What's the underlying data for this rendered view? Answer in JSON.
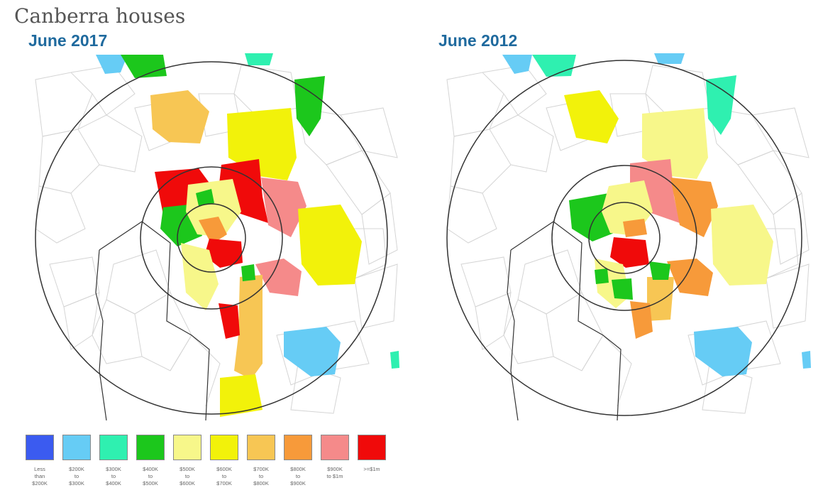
{
  "title": "Canberra houses",
  "maps": [
    {
      "subtitle": "June 2017"
    },
    {
      "subtitle": "June 2012"
    }
  ],
  "colors": {
    "lt200k": "#3b5bf0",
    "200_300k": "#66ccf5",
    "300_400k": "#2ff0b0",
    "400_500k": "#1cc71c",
    "500_600k": "#f7f78a",
    "600_700k": "#f2f20a",
    "700_800k": "#f7c654",
    "800_900k": "#f79a3a",
    "900k_1m": "#f58a8a",
    "gte1m": "#f00a0a"
  },
  "legend": [
    {
      "label": "Less\nthan\n$200K",
      "color_key": "lt200k"
    },
    {
      "label": "$200K\nto\n$300K",
      "color_key": "200_300k"
    },
    {
      "label": "$300K\nto\n$400K",
      "color_key": "300_400k"
    },
    {
      "label": "$400K\nto\n$500K",
      "color_key": "400_500k"
    },
    {
      "label": "$500K\nto\n$600K",
      "color_key": "500_600k"
    },
    {
      "label": "$600K\nto\n$700K",
      "color_key": "600_700k"
    },
    {
      "label": "$700K\nto\n$800K",
      "color_key": "700_800k"
    },
    {
      "label": "$800K\nto\n$900K",
      "color_key": "800_900k"
    },
    {
      "label": "$900K\nto $1m",
      "color_key": "900k_1m"
    },
    {
      "label": ">=$1m",
      "color_key": "gte1m"
    }
  ]
}
